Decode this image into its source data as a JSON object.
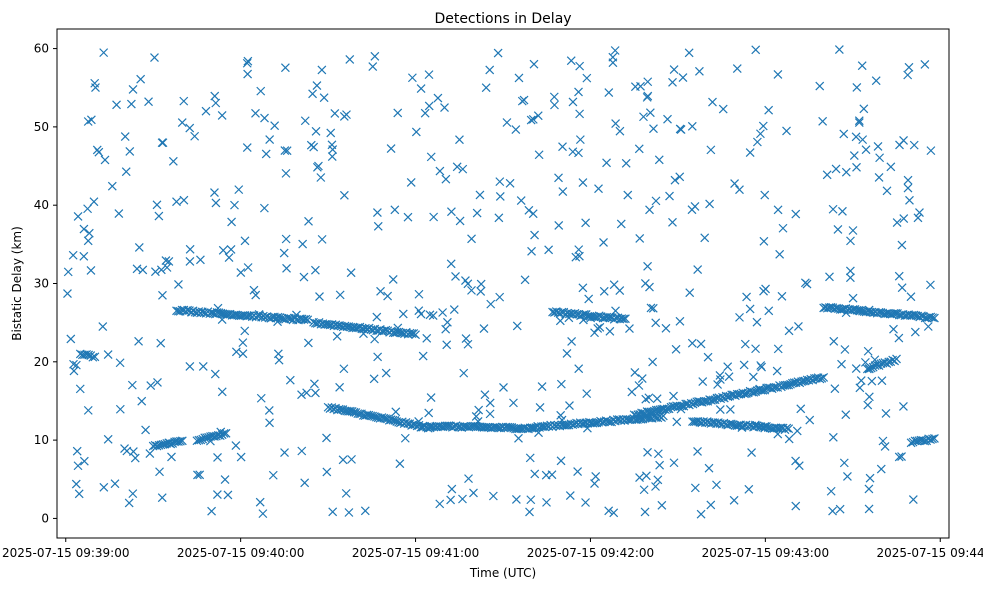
{
  "chart_data": {
    "type": "scatter",
    "title": "Detections in Delay",
    "xlabel": "Time (UTC)",
    "ylabel": "Bistatic Delay (km)",
    "x_axis_type": "datetime",
    "xlim": [
      "2025-07-15 09:38:57",
      "2025-07-15 09:44:03"
    ],
    "ylim": [
      -2.5,
      62.5
    ],
    "x_ticks": [
      "2025-07-15 09:39:00",
      "2025-07-15 09:40:00",
      "2025-07-15 09:41:00",
      "2025-07-15 09:42:00",
      "2025-07-15 09:43:00",
      "2025-07-15 09:44:00"
    ],
    "y_ticks": [
      0,
      10,
      20,
      30,
      40,
      50,
      60
    ],
    "marker": "x",
    "grid": false,
    "legend": null,
    "color": "#1f77b4",
    "tracks": [
      {
        "time_start": "2025-07-15 09:39:38",
        "time_end": "2025-07-15 09:40:23",
        "delay_start": 26.6,
        "delay_end": 25.3
      },
      {
        "time_start": "2025-07-15 09:40:25",
        "time_end": "2025-07-15 09:41:00",
        "delay_start": 25.0,
        "delay_end": 23.5
      },
      {
        "time_start": "2025-07-15 09:40:30",
        "time_end": "2025-07-15 09:41:05",
        "delay_start": 14.2,
        "delay_end": 11.5
      },
      {
        "time_start": "2025-07-15 09:41:05",
        "time_end": "2025-07-15 09:41:40",
        "delay_start": 11.8,
        "delay_end": 11.5
      },
      {
        "time_start": "2025-07-15 09:41:40",
        "time_end": "2025-07-15 09:42:25",
        "delay_start": 11.6,
        "delay_end": 13.0
      },
      {
        "time_start": "2025-07-15 09:41:47",
        "time_end": "2025-07-15 09:42:12",
        "delay_start": 26.4,
        "delay_end": 25.4
      },
      {
        "time_start": "2025-07-15 09:42:15",
        "time_end": "2025-07-15 09:43:20",
        "delay_start": 13.2,
        "delay_end": 18.0
      },
      {
        "time_start": "2025-07-15 09:42:35",
        "time_end": "2025-07-15 09:43:08",
        "delay_start": 12.4,
        "delay_end": 11.4
      },
      {
        "time_start": "2025-07-15 09:43:20",
        "time_end": "2025-07-15 09:43:58",
        "delay_start": 27.0,
        "delay_end": 25.6
      },
      {
        "time_start": "2025-07-15 09:39:05",
        "time_end": "2025-07-15 09:39:10",
        "delay_start": 21.0,
        "delay_end": 20.6
      },
      {
        "time_start": "2025-07-15 09:39:30",
        "time_end": "2025-07-15 09:39:40",
        "delay_start": 9.2,
        "delay_end": 9.9
      },
      {
        "time_start": "2025-07-15 09:39:45",
        "time_end": "2025-07-15 09:39:55",
        "delay_start": 10.0,
        "delay_end": 10.8
      },
      {
        "time_start": "2025-07-15 09:43:35",
        "time_end": "2025-07-15 09:43:45",
        "delay_start": 19.1,
        "delay_end": 20.3
      },
      {
        "time_start": "2025-07-15 09:43:50",
        "time_end": "2025-07-15 09:43:58",
        "delay_start": 9.7,
        "delay_end": 10.2
      }
    ],
    "clutter": {
      "count": 620,
      "time_start": "2025-07-15 09:39:00",
      "time_end": "2025-07-15 09:43:58",
      "delay_min": 0.5,
      "delay_max": 60
    }
  }
}
